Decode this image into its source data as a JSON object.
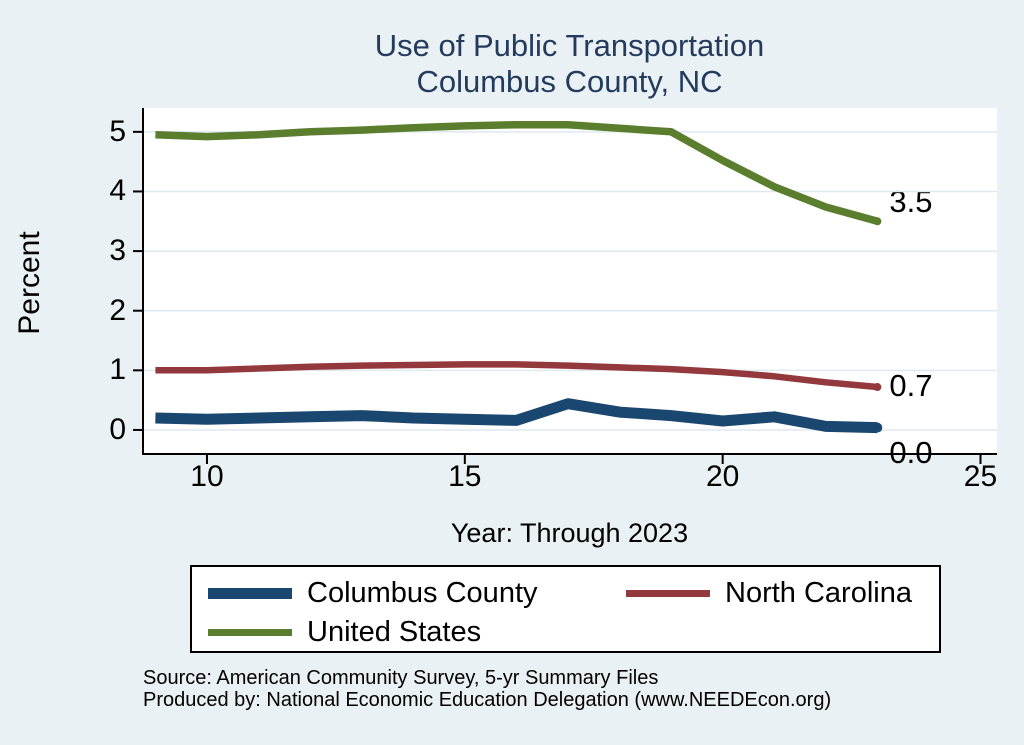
{
  "title": {
    "line1": "Use of Public Transportation",
    "line2": "Columbus County, NC"
  },
  "chart_data": {
    "type": "line",
    "title": "Use of Public Transportation Columbus County, NC",
    "xlabel": "Year: Through 2023",
    "ylabel": "Percent",
    "x": [
      9,
      10,
      11,
      12,
      13,
      14,
      15,
      16,
      17,
      18,
      19,
      20,
      21,
      22,
      23
    ],
    "xlim": [
      8.74,
      25.32
    ],
    "ylim": [
      -0.42,
      5.4
    ],
    "xticks": [
      10,
      15,
      20,
      25
    ],
    "yticks": [
      0,
      1,
      2,
      3,
      4,
      5
    ],
    "grid": true,
    "legend_position": "bottom",
    "series": [
      {
        "name": "Columbus County",
        "color": "#1a476f",
        "line_width": 11,
        "end_label": "0.0",
        "end_label_dy": 24,
        "values": [
          0.2,
          0.18,
          0.2,
          0.22,
          0.24,
          0.2,
          0.18,
          0.16,
          0.44,
          0.3,
          0.24,
          0.15,
          0.22,
          0.06,
          0.04
        ]
      },
      {
        "name": "North Carolina",
        "color": "#93383d",
        "line_width": 6.5,
        "end_label": "0.7",
        "end_label_dy": -2,
        "values": [
          1.0,
          1.0,
          1.03,
          1.06,
          1.08,
          1.09,
          1.1,
          1.1,
          1.08,
          1.05,
          1.02,
          0.97,
          0.9,
          0.8,
          0.72
        ]
      },
      {
        "name": "United States",
        "color": "#5a7e2e",
        "line_width": 7.5,
        "end_label": "3.5",
        "end_label_dy": -20,
        "values": [
          4.95,
          4.92,
          4.95,
          5.0,
          5.03,
          5.07,
          5.1,
          5.12,
          5.12,
          5.06,
          5.0,
          4.52,
          4.08,
          3.74,
          3.5
        ]
      }
    ]
  },
  "footer": {
    "source": "Source: American Community Survey, 5-yr Summary Files",
    "produced_by": "Produced by: National Economic Education Delegation (www.NEEDEcon.org)"
  },
  "colors": {
    "background": "#eaf1f4",
    "plot_background": "#ffffff",
    "grid": "#dfeaf0",
    "axis": "#000000",
    "title": "#243b5e",
    "text": "#000000"
  }
}
